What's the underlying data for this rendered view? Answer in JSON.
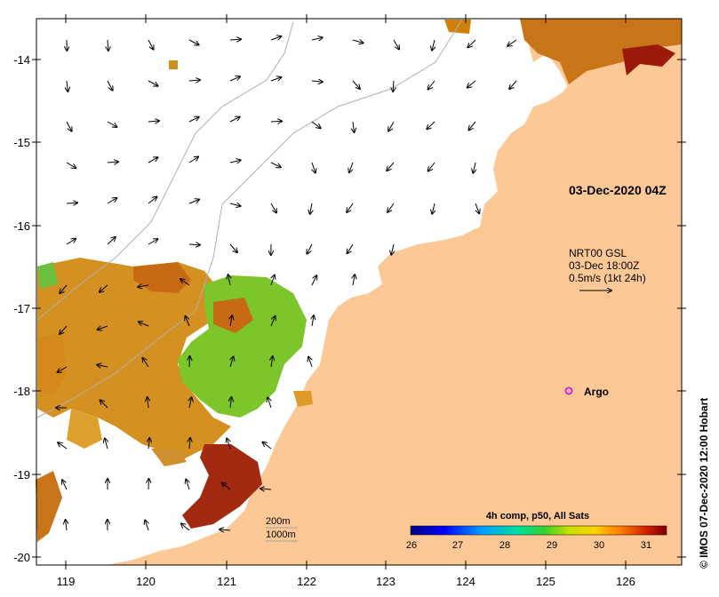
{
  "map": {
    "y_ticks": [
      "-14",
      "-15",
      "-16",
      "-17",
      "-18",
      "-19",
      "-20"
    ],
    "x_ticks": [
      "119",
      "120",
      "121",
      "122",
      "123",
      "124",
      "125",
      "126"
    ],
    "timestamp": "03-Dec-2020 04Z",
    "vector_key": {
      "line1": "NRT00 GSL",
      "line2": "03-Dec 18:00Z",
      "line3": "0.5m/s (1kt 24h)"
    },
    "argo_label": "Argo",
    "depth_legend": [
      "200m",
      "1000m"
    ],
    "credit": "© IMOS 07-Dec-2020 12:00 Hobart",
    "colorbar": {
      "title": "4h comp, p50, All Sats",
      "ticks": [
        "26",
        "27",
        "28",
        "29",
        "30",
        "31"
      ]
    },
    "colors": {
      "land": "#fcc896",
      "sst_warm": "#cf7a14",
      "sst_hot": "#9a1a0c",
      "sst_mid": "#6bbf2a"
    }
  }
}
